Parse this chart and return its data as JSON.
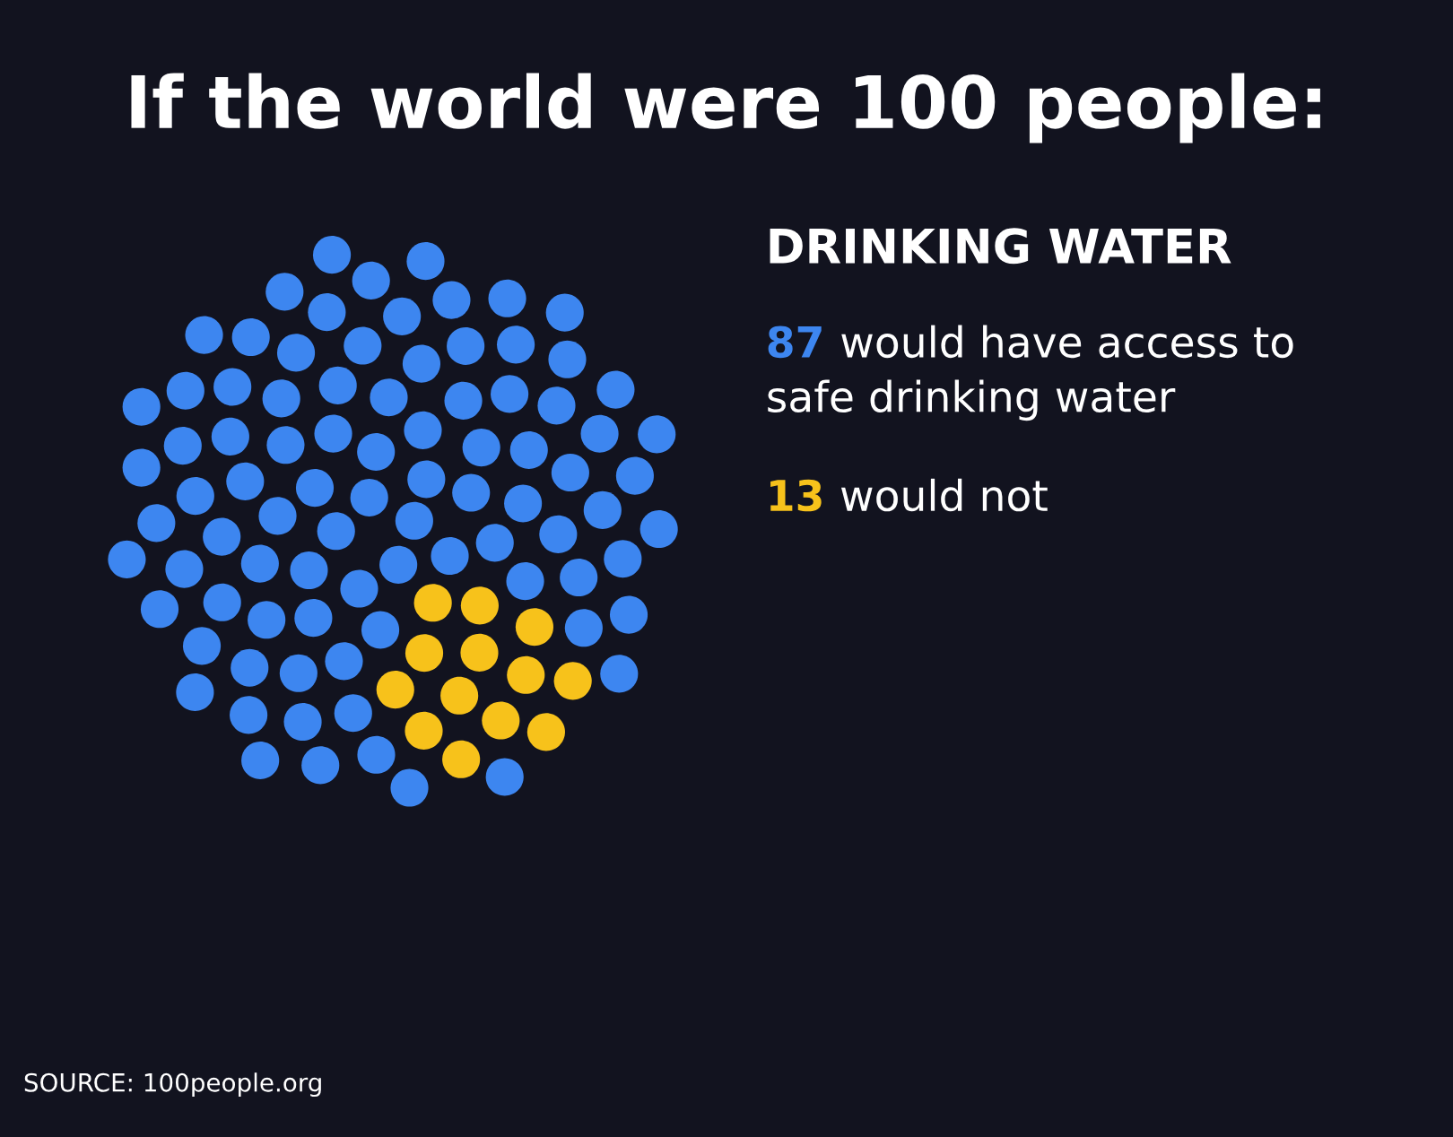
{
  "chart_data": {
    "type": "other",
    "title": "If the world were 100 people:",
    "subtitle": "DRINKING WATER",
    "categories": [
      "would have access to\nsafe drinking water",
      "would not"
    ],
    "values": [
      87,
      13
    ],
    "colors": [
      "#3d86f0",
      "#f7c21b"
    ],
    "data_labels": true,
    "annotations": [
      "SOURCE: 100people.org"
    ]
  }
}
